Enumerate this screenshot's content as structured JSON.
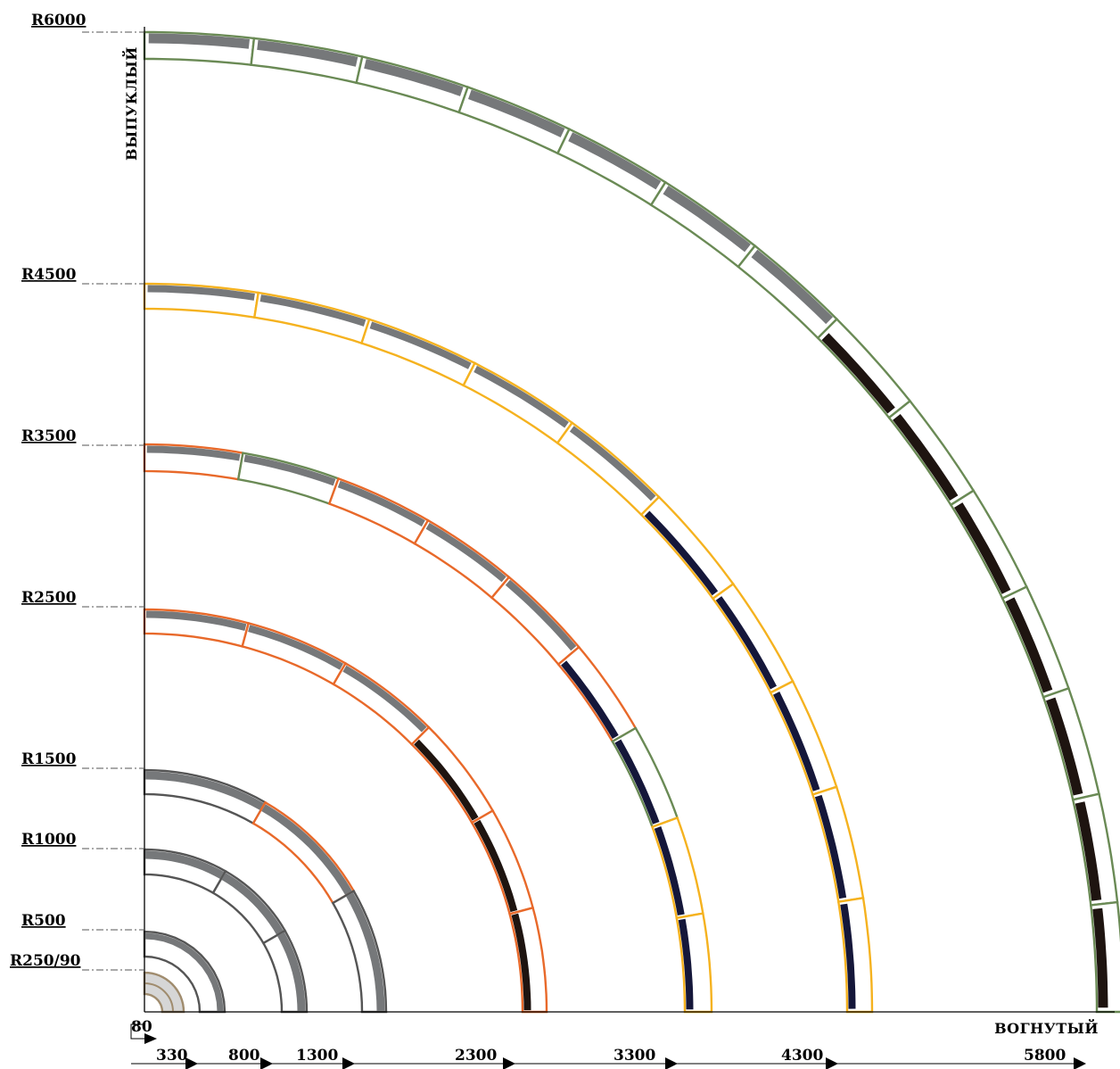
{
  "axes": {
    "vertical_label": "ВЫПУКЛЫЙ",
    "horizontal_label": "ВОГНУТЫЙ"
  },
  "radius_labels": [
    "R6000",
    "R4500",
    "R3500",
    "R2500",
    "R1500",
    "R1000",
    "R500",
    "R250/90"
  ],
  "bottom_scale": {
    "start_label": "80",
    "labels": [
      "330",
      "800",
      "1300",
      "2300",
      "3300",
      "4300",
      "5800"
    ]
  },
  "colors": {
    "grey_outline": "#555555",
    "grey_fill": "#76787a",
    "orange": "#e8692a",
    "yellow": "#f5b21f",
    "green": "#6a8a55",
    "tan": "#a08c6e",
    "light_fill": "#d6d6d6",
    "navy": "#15173a",
    "dark_brown": "#1e1410"
  }
}
